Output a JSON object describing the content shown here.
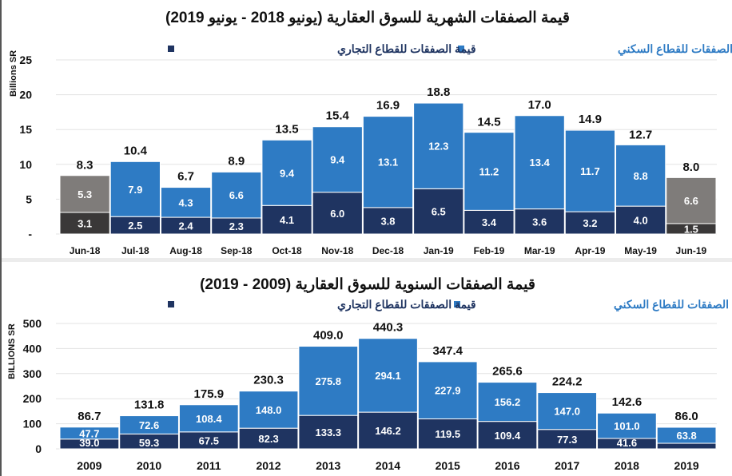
{
  "chart_data": [
    {
      "type": "bar",
      "stacked": true,
      "title": "قيمة الصفقات الشهرية للسوق العقارية (يونيو 2018 - يونيو 2019)",
      "ylabel": "Billions SR",
      "ylim": [
        0,
        25
      ],
      "yticks": [
        "-",
        "5",
        "10",
        "15",
        "20",
        "25"
      ],
      "grid": true,
      "legend_position": "top",
      "categories": [
        "Jun-18",
        "Jul-18",
        "Aug-18",
        "Sep-18",
        "Oct-18",
        "Nov-18",
        "Dec-18",
        "Jan-19",
        "Feb-19",
        "Mar-19",
        "Apr-19",
        "May-19",
        "Jun-19"
      ],
      "series": [
        {
          "name": "قيمة الصفقات للقطاع التجاري",
          "color": "#1F3461",
          "highlight_color": "#3A3838",
          "values": [
            3.1,
            2.5,
            2.4,
            2.3,
            4.1,
            6.0,
            3.8,
            6.5,
            3.4,
            3.6,
            3.2,
            4.0,
            1.5
          ]
        },
        {
          "name": "قيمة الصفقات للقطاع السكني",
          "color": "#2E7BC4",
          "highlight_color": "#7F7C7A",
          "values": [
            5.3,
            7.9,
            4.3,
            6.6,
            9.4,
            9.4,
            13.1,
            12.3,
            11.2,
            13.4,
            11.7,
            8.8,
            6.6
          ]
        }
      ],
      "totals": [
        8.3,
        10.4,
        6.7,
        8.9,
        13.5,
        15.4,
        16.9,
        18.8,
        14.5,
        17.0,
        14.9,
        12.7,
        8.0
      ],
      "highlighted_categories": [
        "Jun-18",
        "Jun-19"
      ]
    },
    {
      "type": "bar",
      "stacked": true,
      "title": "قيمة الصفقات السنوية للسوق العقارية (2009 - 2019)",
      "ylabel": "BILLIONS SR",
      "ylim": [
        0,
        500
      ],
      "yticks": [
        "0",
        "100",
        "200",
        "300",
        "400",
        "500"
      ],
      "grid": true,
      "legend_position": "top",
      "categories": [
        "2009",
        "2010",
        "2011",
        "2012",
        "2013",
        "2014",
        "2015",
        "2016",
        "2017",
        "2018",
        "2019"
      ],
      "series": [
        {
          "name": "قيمة الصفقات للقطاع التجاري",
          "color": "#1F3461",
          "values": [
            39.0,
            59.3,
            67.5,
            82.3,
            133.3,
            146.2,
            119.5,
            109.4,
            77.3,
            41.6,
            22.2
          ]
        },
        {
          "name": "قيمة الصفقات للقطاع السكني",
          "color": "#2E7BC4",
          "values": [
            47.7,
            72.6,
            108.4,
            148.0,
            275.8,
            294.1,
            227.9,
            156.2,
            147.0,
            101.0,
            63.8
          ]
        }
      ],
      "totals": [
        86.7,
        131.8,
        175.9,
        230.3,
        409.0,
        440.3,
        347.4,
        265.6,
        224.2,
        142.6,
        86.0
      ]
    }
  ]
}
